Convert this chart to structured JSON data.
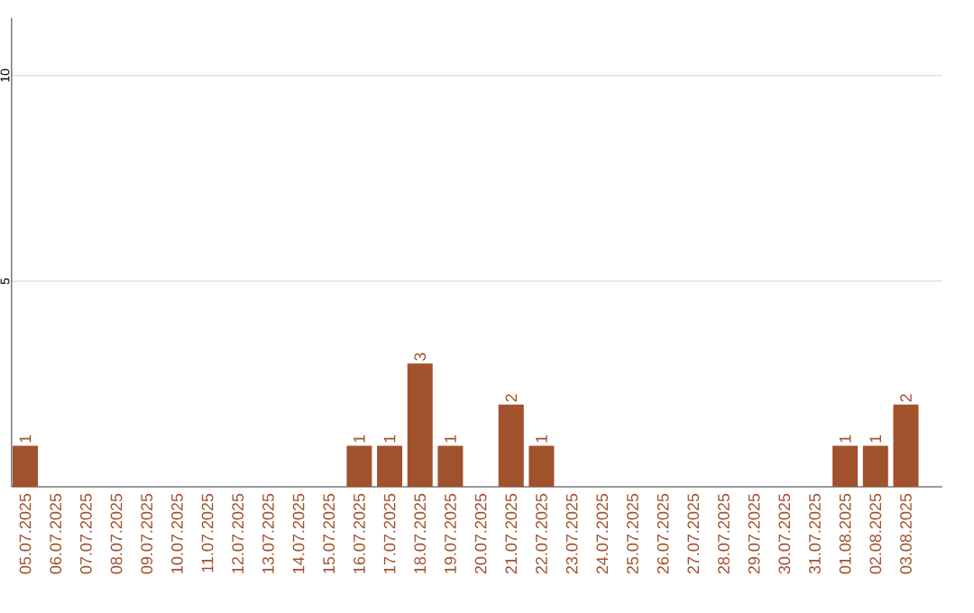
{
  "chart_data": {
    "type": "bar",
    "categories": [
      "05.07.2025",
      "06.07.2025",
      "07.07.2025",
      "08.07.2025",
      "09.07.2025",
      "10.07.2025",
      "11.07.2025",
      "12.07.2025",
      "13.07.2025",
      "14.07.2025",
      "15.07.2025",
      "16.07.2025",
      "17.07.2025",
      "18.07.2025",
      "19.07.2025",
      "20.07.2025",
      "21.07.2025",
      "22.07.2025",
      "23.07.2025",
      "24.07.2025",
      "25.07.2025",
      "26.07.2025",
      "27.07.2025",
      "28.07.2025",
      "29.07.2025",
      "30.07.2025",
      "31.07.2025",
      "01.08.2025",
      "02.08.2025",
      "03.08.2025"
    ],
    "values": [
      1,
      0,
      0,
      0,
      0,
      0,
      0,
      0,
      0,
      0,
      0,
      1,
      1,
      3,
      1,
      0,
      2,
      1,
      0,
      0,
      0,
      0,
      0,
      0,
      0,
      0,
      0,
      1,
      1,
      2
    ],
    "value_labels": [
      "1",
      null,
      null,
      null,
      null,
      null,
      null,
      null,
      null,
      null,
      null,
      "1",
      "1",
      "3",
      "1",
      null,
      "2",
      "1",
      null,
      null,
      null,
      null,
      null,
      null,
      null,
      null,
      null,
      "1",
      "1",
      "2"
    ],
    "color": "#a0522d",
    "ylim": [
      0,
      11.4
    ],
    "yticks": [
      5,
      10
    ],
    "grid": "y"
  }
}
